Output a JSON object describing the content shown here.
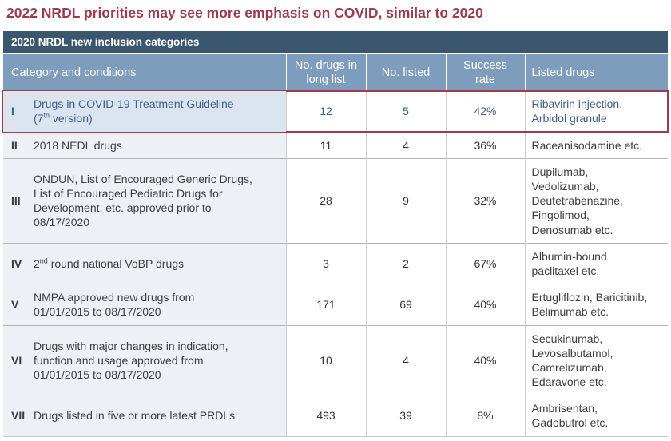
{
  "page": {
    "title": "2022 NRDL priorities may see more emphasis on COVID, similar to 2020"
  },
  "colors": {
    "accent": "#9d3a51",
    "band_bg": "#3b566f",
    "header_bg": "#7e9dbd",
    "highlight_border": "#a23a4e",
    "highlight_text": "#3a5f8b",
    "highlight_cat_bg": "#dbe4ef",
    "cat_bg": "#edf0f5",
    "body_text": "#3d3d3d",
    "grid_v": "#cccccc",
    "grid_h": "#b3b3b3"
  },
  "table": {
    "band_title": "2020 NRDL new inclusion categories",
    "columns": [
      {
        "key": "category",
        "label": "Category and conditions",
        "align": "left"
      },
      {
        "key": "long-list",
        "label": "No. drugs in long list",
        "align": "center"
      },
      {
        "key": "listed",
        "label": "No. listed",
        "align": "center"
      },
      {
        "key": "success-rate",
        "label": "Success rate",
        "align": "center"
      },
      {
        "key": "listed-drugs",
        "label": "Listed drugs",
        "align": "left"
      }
    ],
    "rows": [
      {
        "numeral": "I",
        "highlight": true,
        "category_parts": [
          {
            "t": "Drugs in COVID-19 Treatment Guideline"
          },
          {
            "br": true
          },
          {
            "t": "(7"
          },
          {
            "t": "th",
            "sup": true
          },
          {
            "t": " version)"
          }
        ],
        "long_list": "12",
        "listed": "5",
        "success_rate": "42%",
        "listed_drugs_lines": [
          "Ribavirin injection,",
          "Arbidol granule"
        ]
      },
      {
        "numeral": "II",
        "highlight": false,
        "category_parts": [
          {
            "t": "2018 NEDL drugs"
          }
        ],
        "long_list": "11",
        "listed": "4",
        "success_rate": "36%",
        "listed_drugs_lines": [
          "Raceanisodamine etc."
        ]
      },
      {
        "numeral": "III",
        "highlight": false,
        "category_parts": [
          {
            "t": "ONDUN, List of Encouraged Generic Drugs,"
          },
          {
            "br": true
          },
          {
            "t": "List of Encouraged Pediatric Drugs for"
          },
          {
            "br": true
          },
          {
            "t": "Development, etc. approved prior to"
          },
          {
            "br": true
          },
          {
            "t": "08/17/2020"
          }
        ],
        "long_list": "28",
        "listed": "9",
        "success_rate": "32%",
        "listed_drugs_lines": [
          "Dupilumab,",
          "Vedolizumab,",
          "Deutetrabenazine,",
          "Fingolimod,",
          "Denosumab etc."
        ]
      },
      {
        "numeral": "IV",
        "highlight": false,
        "category_parts": [
          {
            "t": "2"
          },
          {
            "t": "nd",
            "sup": true
          },
          {
            "t": " round national VoBP drugs"
          }
        ],
        "long_list": "3",
        "listed": "2",
        "success_rate": "67%",
        "listed_drugs_lines": [
          "Albumin-bound",
          "paclitaxel etc."
        ]
      },
      {
        "numeral": "V",
        "highlight": false,
        "category_parts": [
          {
            "t": "NMPA approved new drugs from"
          },
          {
            "br": true
          },
          {
            "t": "01/01/2015 to 08/17/2020"
          }
        ],
        "long_list": "171",
        "listed": "69",
        "success_rate": "40%",
        "listed_drugs_lines": [
          "Ertugliflozin, Baricitinib,",
          "Belimumab etc."
        ]
      },
      {
        "numeral": "VI",
        "highlight": false,
        "category_parts": [
          {
            "t": "Drugs with major changes in indication,"
          },
          {
            "br": true
          },
          {
            "t": "function and usage approved from"
          },
          {
            "br": true
          },
          {
            "t": "01/01/2015 to 08/17/2020"
          }
        ],
        "long_list": "10",
        "listed": "4",
        "success_rate": "40%",
        "listed_drugs_lines": [
          "Secukinumab,",
          "Levosalbutamol,",
          "Camrelizumab,",
          "Edaravone etc."
        ]
      },
      {
        "numeral": "VII",
        "highlight": false,
        "category_parts": [
          {
            "t": "Drugs listed in five or more latest PRDLs"
          }
        ],
        "long_list": "493",
        "listed": "39",
        "success_rate": "8%",
        "listed_drugs_lines": [
          "Ambrisentan,",
          "Gadobutrol etc."
        ]
      }
    ]
  }
}
